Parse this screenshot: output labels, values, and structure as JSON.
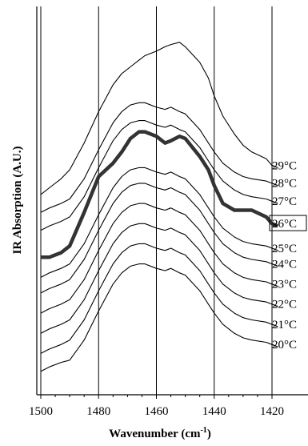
{
  "chart_data": {
    "type": "line",
    "xlabel": "Wavenumber (cm",
    "xlabel_sup": "-1",
    "xlabel_close": ")",
    "ylabel": "IR Absorption (A.U.)",
    "xlim": [
      1500,
      1417
    ],
    "x_reversed": true,
    "y_units": "arbitrary offset",
    "ylim": [
      0,
      16.2
    ],
    "x_ticks": [
      1500,
      1480,
      1460,
      1440,
      1420
    ],
    "x_tick_labels": [
      "1500",
      "1480",
      "1460",
      "1440",
      "1420"
    ],
    "vertical_grid": [
      1500,
      1480,
      1460,
      1440,
      1420
    ],
    "x": [
      1500,
      1497,
      1493,
      1490,
      1485,
      1480,
      1475,
      1472,
      1469,
      1466,
      1464,
      1460,
      1457,
      1455,
      1452,
      1450,
      1445,
      1442,
      1440,
      1437,
      1433,
      1430,
      1427,
      1422,
      1420,
      1418
    ],
    "highlighted_series": "26°C",
    "series": [
      {
        "name": "20°C",
        "values": [
          0.4,
          0.6,
          0.8,
          0.9,
          1.8,
          3.1,
          4.3,
          4.8,
          5.1,
          5.2,
          5.2,
          5.0,
          4.9,
          5.0,
          4.8,
          4.7,
          4.0,
          3.4,
          3.0,
          2.5,
          2.1,
          1.9,
          1.8,
          1.7,
          1.6,
          1.5
        ]
      },
      {
        "name": "21°C",
        "values": [
          1.2,
          1.4,
          1.6,
          1.8,
          2.7,
          4.0,
          5.2,
          5.7,
          6.0,
          6.1,
          6.1,
          5.9,
          5.8,
          5.9,
          5.7,
          5.6,
          4.9,
          4.3,
          3.9,
          3.4,
          3.0,
          2.8,
          2.7,
          2.6,
          2.5,
          2.4
        ]
      },
      {
        "name": "22°C",
        "values": [
          2.1,
          2.3,
          2.5,
          2.7,
          3.6,
          4.9,
          6.1,
          6.6,
          6.9,
          7.0,
          7.0,
          6.8,
          6.7,
          6.8,
          6.6,
          6.5,
          5.8,
          5.2,
          4.8,
          4.3,
          3.9,
          3.7,
          3.6,
          3.5,
          3.4,
          3.3
        ]
      },
      {
        "name": "23°C",
        "values": [
          3.0,
          3.2,
          3.4,
          3.6,
          4.5,
          5.8,
          7.0,
          7.5,
          7.8,
          7.9,
          7.9,
          7.7,
          7.6,
          7.7,
          7.5,
          7.4,
          6.7,
          6.1,
          5.7,
          5.2,
          4.8,
          4.6,
          4.5,
          4.4,
          4.3,
          4.2
        ]
      },
      {
        "name": "24°C",
        "values": [
          3.9,
          4.1,
          4.3,
          4.5,
          5.4,
          6.7,
          7.9,
          8.4,
          8.7,
          8.8,
          8.8,
          8.6,
          8.5,
          8.6,
          8.4,
          8.3,
          7.6,
          7.0,
          6.6,
          6.1,
          5.7,
          5.5,
          5.4,
          5.3,
          5.2,
          5.1
        ]
      },
      {
        "name": "25°C",
        "values": [
          4.6,
          4.8,
          5.0,
          5.2,
          6.1,
          7.4,
          8.6,
          9.1,
          9.4,
          9.5,
          9.5,
          9.3,
          9.2,
          9.3,
          9.1,
          9.0,
          8.3,
          7.7,
          7.3,
          6.8,
          6.4,
          6.2,
          6.1,
          6.0,
          5.9,
          5.8
        ]
      },
      {
        "name": "26°C",
        "values": [
          5.5,
          5.5,
          5.7,
          6.0,
          7.5,
          9.1,
          9.7,
          10.2,
          10.8,
          11.1,
          11.1,
          10.9,
          10.6,
          10.7,
          10.9,
          10.8,
          10.0,
          9.4,
          8.7,
          7.9,
          7.6,
          7.6,
          7.6,
          7.3,
          7.0,
          6.9
        ]
      },
      {
        "name": "27°C",
        "values": [
          6.7,
          6.9,
          7.1,
          7.3,
          8.2,
          9.5,
          10.7,
          11.2,
          11.5,
          11.6,
          11.6,
          11.4,
          11.3,
          11.4,
          11.2,
          11.1,
          10.4,
          9.8,
          9.4,
          8.9,
          8.5,
          8.3,
          8.2,
          8.1,
          8.0,
          7.9
        ]
      },
      {
        "name": "28°C",
        "values": [
          7.5,
          7.7,
          7.9,
          8.1,
          9.0,
          10.3,
          11.5,
          12.0,
          12.3,
          12.4,
          12.4,
          12.2,
          12.1,
          12.2,
          12.0,
          11.9,
          11.2,
          10.6,
          10.2,
          9.7,
          9.3,
          9.1,
          9.0,
          8.9,
          8.8,
          8.7
        ]
      },
      {
        "name": "29°C",
        "values": [
          8.3,
          8.6,
          9.0,
          9.4,
          10.6,
          12.0,
          13.2,
          13.7,
          14.0,
          14.3,
          14.5,
          14.7,
          14.9,
          15.0,
          15.1,
          14.9,
          14.2,
          13.5,
          12.7,
          11.8,
          11.0,
          10.5,
          10.2,
          9.9,
          9.6,
          9.5
        ]
      }
    ]
  }
}
